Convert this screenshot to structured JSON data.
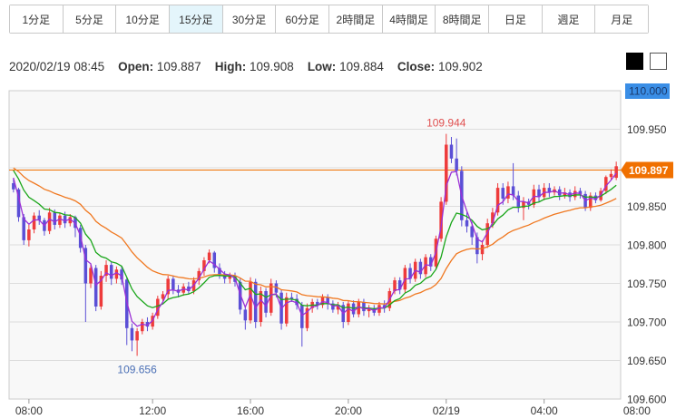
{
  "toolbar": {
    "tabs": [
      {
        "label": "1分足",
        "active": false
      },
      {
        "label": "5分足",
        "active": false
      },
      {
        "label": "10分足",
        "active": false
      },
      {
        "label": "15分足",
        "active": true
      },
      {
        "label": "30分足",
        "active": false
      },
      {
        "label": "60分足",
        "active": false
      },
      {
        "label": "2時間足",
        "active": false
      },
      {
        "label": "4時間足",
        "active": false
      },
      {
        "label": "8時間足",
        "active": false
      },
      {
        "label": "日足",
        "active": false
      },
      {
        "label": "週足",
        "active": false
      },
      {
        "label": "月足",
        "active": false
      }
    ]
  },
  "info": {
    "datetime": "2020/02/19 08:45",
    "open_label": "Open:",
    "open": "109.887",
    "high_label": "High:",
    "high": "109.908",
    "low_label": "Low:",
    "low": "109.884",
    "close_label": "Close:",
    "close": "109.902"
  },
  "colors": {
    "up": "#ee3b3b",
    "down": "#5b4fd6",
    "ma_short": "#9b2fd6",
    "ma_mid": "#1aa61a",
    "ma_long": "#f07820",
    "current": "#f07000",
    "axis_top": "#3a8ee6"
  },
  "chart_data": {
    "type": "candlestick",
    "ylim": [
      109.6,
      110.0
    ],
    "y_ticks": [
      "110.000",
      "109.950",
      "109.900",
      "109.850",
      "109.800",
      "109.750",
      "109.700",
      "109.650",
      "109.600"
    ],
    "x_ticks": [
      "08:00",
      "12:00",
      "16:00",
      "20:00",
      "02/19",
      "04:00",
      "08:00"
    ],
    "current_price": "109.897",
    "high_annotation": "109.944",
    "low_annotation": "109.656",
    "candles": [
      [
        109.88,
        109.872,
        109.886,
        109.868
      ],
      [
        109.872,
        109.836,
        109.874,
        109.83
      ],
      [
        109.836,
        109.806,
        109.84,
        109.8
      ],
      [
        109.806,
        109.82,
        109.826,
        109.798
      ],
      [
        109.82,
        109.838,
        109.842,
        109.815
      ],
      [
        109.838,
        109.832,
        109.845,
        109.826
      ],
      [
        109.832,
        109.818,
        109.835,
        109.812
      ],
      [
        109.818,
        109.842,
        109.848,
        109.814
      ],
      [
        109.842,
        109.826,
        109.846,
        109.82
      ],
      [
        109.826,
        109.838,
        109.841,
        109.822
      ],
      [
        109.838,
        109.828,
        109.843,
        109.822
      ],
      [
        109.828,
        109.836,
        109.84,
        109.824
      ],
      [
        109.836,
        109.822,
        109.838,
        109.81
      ],
      [
        109.822,
        109.796,
        109.826,
        109.79
      ],
      [
        109.796,
        109.75,
        109.8,
        109.7
      ],
      [
        109.75,
        109.77,
        109.776,
        109.744
      ],
      [
        109.77,
        109.72,
        109.774,
        109.714
      ],
      [
        109.72,
        109.76,
        109.766,
        109.716
      ],
      [
        109.76,
        109.774,
        109.78,
        109.752
      ],
      [
        109.774,
        109.756,
        109.778,
        109.748
      ],
      [
        109.756,
        109.768,
        109.772,
        109.75
      ],
      [
        109.768,
        109.755,
        109.772,
        109.748
      ],
      [
        109.755,
        109.692,
        109.758,
        109.67
      ],
      [
        109.692,
        109.676,
        109.698,
        109.662
      ],
      [
        109.676,
        109.688,
        109.692,
        109.656
      ],
      [
        109.688,
        109.7,
        109.704,
        109.684
      ],
      [
        109.7,
        109.694,
        109.706,
        109.688
      ],
      [
        109.694,
        109.708,
        109.712,
        109.69
      ],
      [
        109.708,
        109.73,
        109.734,
        109.704
      ],
      [
        109.73,
        109.736,
        109.74,
        109.726
      ],
      [
        109.736,
        109.756,
        109.76,
        109.73
      ],
      [
        109.756,
        109.742,
        109.76,
        109.736
      ],
      [
        109.742,
        109.738,
        109.748,
        109.732
      ],
      [
        109.738,
        109.746,
        109.75,
        109.734
      ],
      [
        109.746,
        109.74,
        109.752,
        109.736
      ],
      [
        109.74,
        109.754,
        109.758,
        109.736
      ],
      [
        109.754,
        109.766,
        109.77,
        109.748
      ],
      [
        109.766,
        109.78,
        109.784,
        109.76
      ],
      [
        109.78,
        109.79,
        109.794,
        109.776
      ],
      [
        109.79,
        109.77,
        109.792,
        109.764
      ],
      [
        109.77,
        109.762,
        109.776,
        109.756
      ],
      [
        109.762,
        109.756,
        109.766,
        109.75
      ],
      [
        109.756,
        109.76,
        109.764,
        109.75
      ],
      [
        109.76,
        109.752,
        109.764,
        109.746
      ],
      [
        109.752,
        109.716,
        109.756,
        109.71
      ],
      [
        109.716,
        109.702,
        109.72,
        109.69
      ],
      [
        109.702,
        109.752,
        109.758,
        109.698
      ],
      [
        109.752,
        109.7,
        109.756,
        109.692
      ],
      [
        109.7,
        109.74,
        109.746,
        109.694
      ],
      [
        109.74,
        109.712,
        109.744,
        109.706
      ],
      [
        109.712,
        109.75,
        109.756,
        109.708
      ],
      [
        109.75,
        109.738,
        109.754,
        109.732
      ],
      [
        109.738,
        109.698,
        109.742,
        109.69
      ],
      [
        109.698,
        109.732,
        109.738,
        109.694
      ],
      [
        109.732,
        109.73,
        109.738,
        109.726
      ],
      [
        109.73,
        109.722,
        109.736,
        109.716
      ],
      [
        109.722,
        109.692,
        109.726,
        109.668
      ],
      [
        109.692,
        109.718,
        109.724,
        109.688
      ],
      [
        109.718,
        109.726,
        109.73,
        109.712
      ],
      [
        109.726,
        109.722,
        109.73,
        109.716
      ],
      [
        109.722,
        109.732,
        109.736,
        109.718
      ],
      [
        109.732,
        109.724,
        109.736,
        109.716
      ],
      [
        109.724,
        109.716,
        109.728,
        109.712
      ],
      [
        109.716,
        109.722,
        109.726,
        109.71
      ],
      [
        109.722,
        109.7,
        109.726,
        109.692
      ],
      [
        109.7,
        109.724,
        109.728,
        109.696
      ],
      [
        109.724,
        109.71,
        109.728,
        109.706
      ],
      [
        109.71,
        109.726,
        109.73,
        109.706
      ],
      [
        109.726,
        109.714,
        109.73,
        109.708
      ],
      [
        109.714,
        109.718,
        109.722,
        109.706
      ],
      [
        109.718,
        109.712,
        109.722,
        109.708
      ],
      [
        109.712,
        109.722,
        109.726,
        109.708
      ],
      [
        109.722,
        109.718,
        109.728,
        109.712
      ],
      [
        109.718,
        109.74,
        109.744,
        109.714
      ],
      [
        109.74,
        109.754,
        109.758,
        109.736
      ],
      [
        109.754,
        109.742,
        109.758,
        109.736
      ],
      [
        109.742,
        109.77,
        109.774,
        109.738
      ],
      [
        109.77,
        109.756,
        109.776,
        109.75
      ],
      [
        109.756,
        109.778,
        109.782,
        109.752
      ],
      [
        109.778,
        109.762,
        109.782,
        109.756
      ],
      [
        109.762,
        109.784,
        109.788,
        109.758
      ],
      [
        109.784,
        109.772,
        109.788,
        109.766
      ],
      [
        109.772,
        109.808,
        109.812,
        109.768
      ],
      [
        109.808,
        109.856,
        109.862,
        109.804
      ],
      [
        109.856,
        109.93,
        109.944,
        109.852
      ],
      [
        109.93,
        109.912,
        109.94,
        109.906
      ],
      [
        109.912,
        109.896,
        109.938,
        109.89
      ],
      [
        109.896,
        109.832,
        109.902,
        109.824
      ],
      [
        109.832,
        109.824,
        109.842,
        109.816
      ],
      [
        109.824,
        109.81,
        109.83,
        109.8
      ],
      [
        109.81,
        109.788,
        109.816,
        109.776
      ],
      [
        109.788,
        109.8,
        109.806,
        109.78
      ],
      [
        109.8,
        109.828,
        109.834,
        109.796
      ],
      [
        109.828,
        109.842,
        109.848,
        109.822
      ],
      [
        109.842,
        109.874,
        109.88,
        109.838
      ],
      [
        109.874,
        109.86,
        109.88,
        109.852
      ],
      [
        109.86,
        109.876,
        109.882,
        109.854
      ],
      [
        109.876,
        109.864,
        109.906,
        109.858
      ],
      [
        109.864,
        109.848,
        109.87,
        109.842
      ],
      [
        109.848,
        109.856,
        109.862,
        109.832
      ],
      [
        109.856,
        109.852,
        109.86,
        109.846
      ],
      [
        109.852,
        109.872,
        109.878,
        109.848
      ],
      [
        109.872,
        109.862,
        109.878,
        109.856
      ],
      [
        109.862,
        109.874,
        109.88,
        109.858
      ],
      [
        109.874,
        109.868,
        109.88,
        109.862
      ],
      [
        109.868,
        109.872,
        109.876,
        109.864
      ],
      [
        109.872,
        109.864,
        109.876,
        109.858
      ],
      [
        109.864,
        109.868,
        109.874,
        109.86
      ],
      [
        109.868,
        109.862,
        109.872,
        109.856
      ],
      [
        109.862,
        109.87,
        109.876,
        109.858
      ],
      [
        109.87,
        109.866,
        109.874,
        109.86
      ],
      [
        109.866,
        109.848,
        109.87,
        109.844
      ],
      [
        109.848,
        109.864,
        109.868,
        109.844
      ],
      [
        109.864,
        109.858,
        109.868,
        109.854
      ],
      [
        109.858,
        109.87,
        109.874,
        109.856
      ],
      [
        109.87,
        109.888,
        109.89,
        109.866
      ],
      [
        109.888,
        109.892,
        109.898,
        109.884
      ],
      [
        109.887,
        109.902,
        109.908,
        109.884
      ]
    ]
  }
}
